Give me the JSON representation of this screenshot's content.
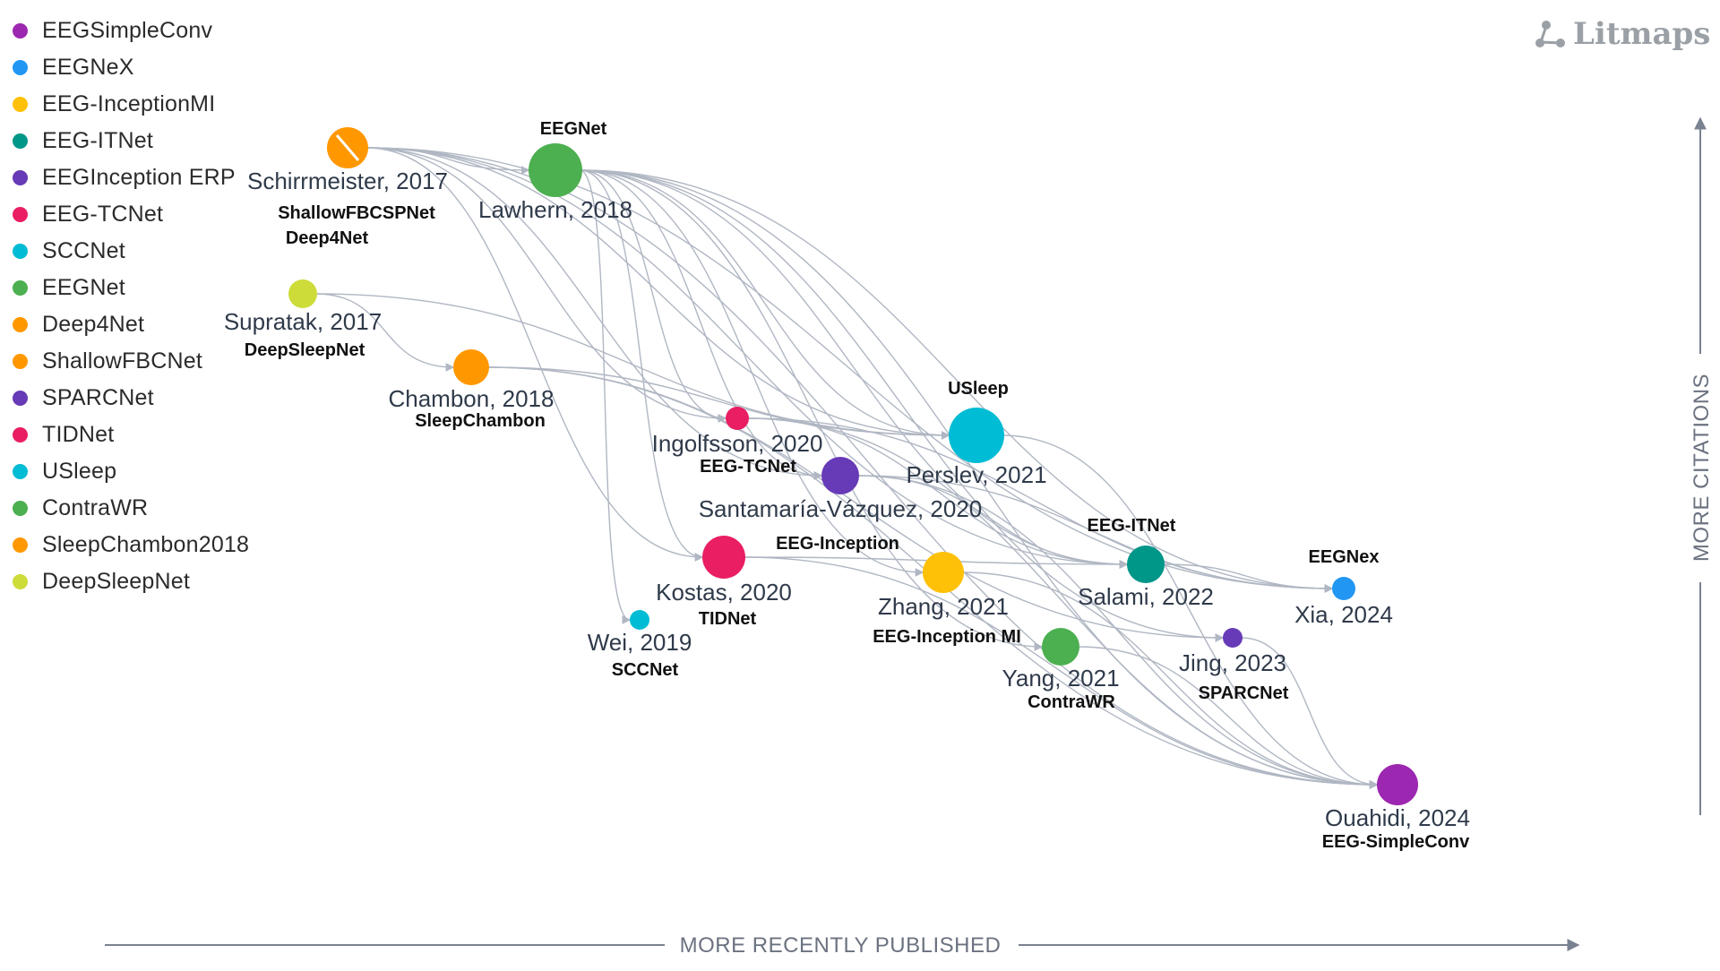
{
  "brand": {
    "name": "Litmaps",
    "icon": "litmaps-logo-icon"
  },
  "axes": {
    "x_label": "MORE RECENTLY PUBLISHED",
    "y_label": "MORE CITATIONS"
  },
  "colors": {
    "purple": "#9c27b0",
    "blue": "#2196f3",
    "yellow": "#ffc107",
    "teal": "#009688",
    "violet": "#673ab7",
    "pink": "#e91e63",
    "cyan": "#00bcd4",
    "green": "#4caf50",
    "orange": "#ff9800",
    "lime": "#cddc39",
    "edge": "#b0b7c3"
  },
  "legend": [
    {
      "label": "EEGSimpleConv",
      "color": "#9c27b0"
    },
    {
      "label": "EEGNeX",
      "color": "#2196f3"
    },
    {
      "label": "EEG-InceptionMI",
      "color": "#ffc107"
    },
    {
      "label": "EEG-ITNet",
      "color": "#009688"
    },
    {
      "label": "EEGInception ERP",
      "color": "#673ab7"
    },
    {
      "label": "EEG-TCNet",
      "color": "#e91e63"
    },
    {
      "label": "SCCNet",
      "color": "#00bcd4"
    },
    {
      "label": "EEGNet",
      "color": "#4caf50"
    },
    {
      "label": "Deep4Net",
      "color": "#ff9800"
    },
    {
      "label": "ShallowFBCNet",
      "color": "#ff9800"
    },
    {
      "label": "SPARCNet",
      "color": "#673ab7"
    },
    {
      "label": "TIDNet",
      "color": "#e91e63"
    },
    {
      "label": "USleep",
      "color": "#00bcd4"
    },
    {
      "label": "ContraWR",
      "color": "#4caf50"
    },
    {
      "label": "SleepChambon2018",
      "color": "#ff9800"
    },
    {
      "label": "DeepSleepNet",
      "color": "#cddc39"
    }
  ],
  "papers": [
    {
      "id": "schirrmeister",
      "label": "Schirrmeister, 2017",
      "tags": [
        "ShallowFBCSPNet",
        "Deep4Net"
      ],
      "color": "#ff9800"
    },
    {
      "id": "lawhern",
      "label": "Lawhern, 2018",
      "tags": [
        "EEGNet"
      ],
      "color": "#4caf50"
    },
    {
      "id": "supratak",
      "label": "Supratak, 2017",
      "tags": [
        "DeepSleepNet"
      ],
      "color": "#cddc39"
    },
    {
      "id": "chambon",
      "label": "Chambon, 2018",
      "tags": [
        "SleepChambon"
      ],
      "color": "#ff9800"
    },
    {
      "id": "ingolfsson",
      "label": "Ingolfsson, 2020",
      "tags": [
        "EEG-TCNet"
      ],
      "color": "#e91e63"
    },
    {
      "id": "perslev",
      "label": "Perslev, 2021",
      "tags": [
        "USleep"
      ],
      "color": "#00bcd4"
    },
    {
      "id": "santamaria",
      "label": "Santamaría-Vázquez, 2020",
      "tags": [
        "EEG-Inception"
      ],
      "color": "#673ab7"
    },
    {
      "id": "kostas",
      "label": "Kostas, 2020",
      "tags": [
        "TIDNet"
      ],
      "color": "#e91e63"
    },
    {
      "id": "wei",
      "label": "Wei, 2019",
      "tags": [
        "SCCNet"
      ],
      "color": "#00bcd4"
    },
    {
      "id": "zhang",
      "label": "Zhang, 2021",
      "tags": [
        "EEG-Inception MI"
      ],
      "color": "#ffc107"
    },
    {
      "id": "yang",
      "label": "Yang, 2021",
      "tags": [
        "ContraWR"
      ],
      "color": "#4caf50"
    },
    {
      "id": "salami",
      "label": "Salami, 2022",
      "tags": [
        "EEG-ITNet"
      ],
      "color": "#009688"
    },
    {
      "id": "xia",
      "label": "Xia, 2024",
      "tags": [
        "EEGNex"
      ],
      "color": "#2196f3"
    },
    {
      "id": "jing",
      "label": "Jing, 2023",
      "tags": [
        "SPARCNet"
      ],
      "color": "#673ab7"
    },
    {
      "id": "ouahidi",
      "label": "Ouahidi, 2024",
      "tags": [
        "EEG-SimpleConv"
      ],
      "color": "#9c27b0"
    }
  ],
  "citations": [
    [
      "schirrmeister",
      "lawhern"
    ],
    [
      "schirrmeister",
      "ingolfsson"
    ],
    [
      "schirrmeister",
      "kostas"
    ],
    [
      "schirrmeister",
      "salami"
    ],
    [
      "schirrmeister",
      "xia"
    ],
    [
      "schirrmeister",
      "santamaria"
    ],
    [
      "schirrmeister",
      "ouahidi"
    ],
    [
      "schirrmeister",
      "perslev"
    ],
    [
      "lawhern",
      "ingolfsson"
    ],
    [
      "lawhern",
      "santamaria"
    ],
    [
      "lawhern",
      "kostas"
    ],
    [
      "lawhern",
      "wei"
    ],
    [
      "lawhern",
      "salami"
    ],
    [
      "lawhern",
      "xia"
    ],
    [
      "lawhern",
      "ouahidi"
    ],
    [
      "lawhern",
      "jing"
    ],
    [
      "lawhern",
      "yang"
    ],
    [
      "lawhern",
      "zhang"
    ],
    [
      "lawhern",
      "perslev"
    ],
    [
      "supratak",
      "chambon"
    ],
    [
      "supratak",
      "perslev"
    ],
    [
      "chambon",
      "perslev"
    ],
    [
      "chambon",
      "ouahidi"
    ],
    [
      "chambon",
      "jing"
    ],
    [
      "ingolfsson",
      "salami"
    ],
    [
      "ingolfsson",
      "xia"
    ],
    [
      "ingolfsson",
      "ouahidi"
    ],
    [
      "santamaria",
      "salami"
    ],
    [
      "santamaria",
      "xia"
    ],
    [
      "santamaria",
      "ouahidi"
    ],
    [
      "kostas",
      "ouahidi"
    ],
    [
      "kostas",
      "salami"
    ],
    [
      "zhang",
      "ouahidi"
    ],
    [
      "yang",
      "ouahidi"
    ],
    [
      "perslev",
      "ouahidi"
    ],
    [
      "salami",
      "xia"
    ],
    [
      "jing",
      "ouahidi"
    ]
  ]
}
